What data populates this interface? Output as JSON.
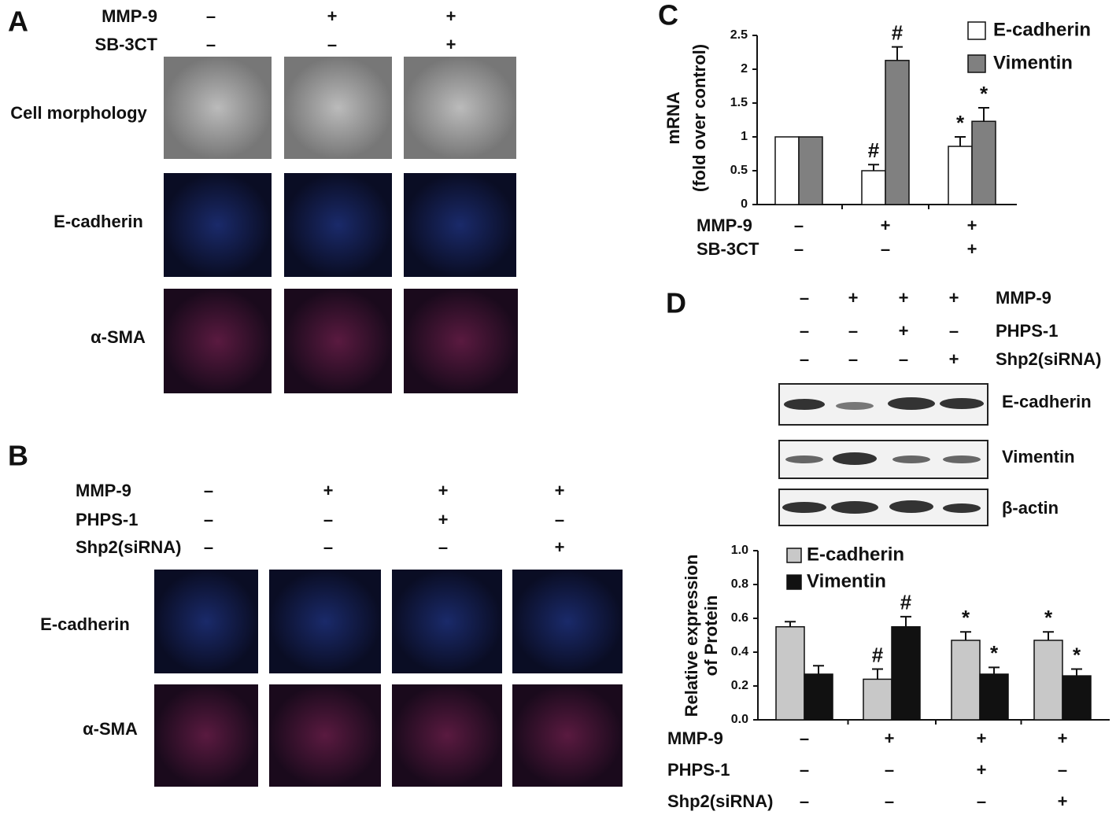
{
  "panel_a": {
    "label": "A",
    "conditions": [
      {
        "name": "MMP-9",
        "signs": [
          "–",
          "+",
          "+"
        ]
      },
      {
        "name": "SB-3CT",
        "signs": [
          "–",
          "–",
          "+"
        ]
      }
    ],
    "rows": [
      "Cell morphology",
      "E-cadherin",
      "α-SMA"
    ]
  },
  "panel_b": {
    "label": "B",
    "conditions": [
      {
        "name": "MMP-9",
        "signs": [
          "–",
          "+",
          "+",
          "+"
        ]
      },
      {
        "name": "PHPS-1",
        "signs": [
          "–",
          "–",
          "+",
          "–"
        ]
      },
      {
        "name": "Shp2(siRNA)",
        "signs": [
          "–",
          "–",
          "–",
          "+"
        ]
      }
    ],
    "rows": [
      "E-cadherin",
      "α-SMA"
    ]
  },
  "panel_d_blot": {
    "label": "D",
    "conditions": [
      {
        "name": "MMP-9",
        "signs": [
          "–",
          "+",
          "+",
          "+"
        ]
      },
      {
        "name": "PHPS-1",
        "signs": [
          "–",
          "–",
          "+",
          "–"
        ]
      },
      {
        "name": "Shp2(siRNA)",
        "signs": [
          "–",
          "–",
          "–",
          "+"
        ]
      }
    ],
    "bands": [
      "E-cadherin",
      "Vimentin",
      "β-actin"
    ]
  },
  "chart_data": [
    {
      "type": "bar",
      "label": "C",
      "y_label": [
        "mRNA",
        "(fold over control)"
      ],
      "categories": [
        null,
        null,
        null
      ],
      "conditions": [
        {
          "name": "MMP-9",
          "signs": [
            "–",
            "+",
            "+"
          ]
        },
        {
          "name": "SB-3CT",
          "signs": [
            "–",
            "–",
            "+"
          ]
        }
      ],
      "series": [
        {
          "name": "E-cadherin",
          "color": "#ffffff",
          "values": [
            1,
            0.5,
            0.86
          ],
          "errors": [
            0,
            0.09,
            0.14
          ],
          "markers": [
            null,
            "#",
            "*"
          ]
        },
        {
          "name": "Vimentin",
          "color": "#808080",
          "values": [
            1,
            2.13,
            1.23
          ],
          "errors": [
            0,
            0.2,
            0.2
          ],
          "markers": [
            null,
            "#",
            "*"
          ]
        }
      ],
      "ylim": [
        0,
        2.5
      ],
      "yticks": [
        0,
        0.5,
        1,
        1.5,
        2,
        2.5
      ],
      "legend": "top-right"
    },
    {
      "type": "bar",
      "y_label": [
        "Relative expression",
        "of  Protein"
      ],
      "categories": [
        null,
        null,
        null,
        null
      ],
      "conditions": [
        {
          "name": "MMP-9",
          "signs": [
            "–",
            "+",
            "+",
            "+"
          ]
        },
        {
          "name": "PHPS-1",
          "signs": [
            "–",
            "–",
            "+",
            "–"
          ]
        },
        {
          "name": "Shp2(siRNA)",
          "signs": [
            "–",
            "–",
            "–",
            "+"
          ]
        }
      ],
      "series": [
        {
          "name": "E-cadherin",
          "color": "#c8c8c8",
          "values": [
            0.55,
            0.24,
            0.47,
            0.47
          ],
          "errors": [
            0.03,
            0.06,
            0.05,
            0.05
          ],
          "markers": [
            null,
            "#",
            "*",
            "*"
          ]
        },
        {
          "name": "Vimentin",
          "color": "#111111",
          "values": [
            0.27,
            0.55,
            0.27,
            0.26
          ],
          "errors": [
            0.05,
            0.06,
            0.04,
            0.04
          ],
          "markers": [
            null,
            "#",
            "*",
            "*"
          ]
        }
      ],
      "ylim": [
        0,
        1
      ],
      "yticks": [
        {
          "value": 0,
          "label": "0.0"
        },
        0.2,
        0.4,
        0.6,
        0.8,
        {
          "value": 1,
          "label": "1.0"
        }
      ],
      "legend": "top-left"
    }
  ]
}
